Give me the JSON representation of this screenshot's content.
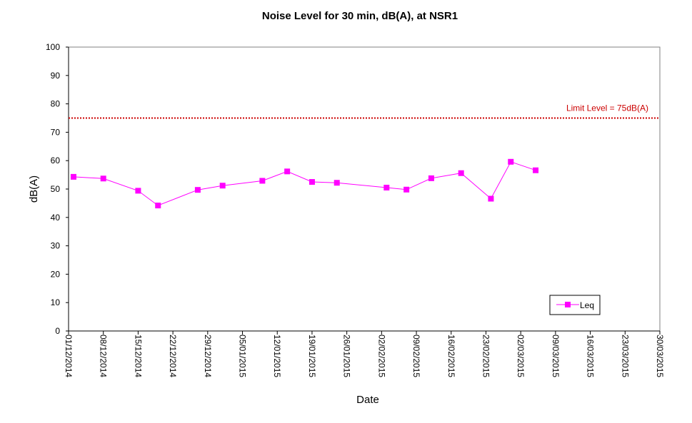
{
  "chart_data": {
    "type": "line",
    "title": "Noise Level for 30 min, dB(A), at NSR1",
    "xlabel": "Date",
    "ylabel": "dB(A)",
    "ylim": [
      0,
      100
    ],
    "yticks": [
      "0",
      "10",
      "20",
      "30",
      "40",
      "50",
      "60",
      "70",
      "80",
      "90",
      "100"
    ],
    "x_axis_type": "date",
    "xlim": [
      "2014-12-01",
      "2015-03-30"
    ],
    "xticks": [
      "01/12/2014",
      "08/12/2014",
      "15/12/2014",
      "22/12/2014",
      "29/12/2014",
      "05/01/2015",
      "12/01/2015",
      "19/01/2015",
      "26/01/2015",
      "02/02/2015",
      "09/02/2015",
      "16/02/2015",
      "23/02/2015",
      "02/03/2015",
      "09/03/2015",
      "16/03/2015",
      "23/03/2015",
      "30/03/2015"
    ],
    "grid": false,
    "legend_position": "bottom-right",
    "series": [
      {
        "name": "Leq",
        "color": "#ff00ff",
        "marker": "square",
        "x": [
          "2014-12-02",
          "2014-12-08",
          "2014-12-15",
          "2014-12-19",
          "2014-12-27",
          "2015-01-01",
          "2015-01-09",
          "2015-01-14",
          "2015-01-19",
          "2015-01-24",
          "2015-02-03",
          "2015-02-07",
          "2015-02-12",
          "2015-02-18",
          "2015-02-24",
          "2015-02-28",
          "2015-03-05",
          "2015-03-11"
        ],
        "y": [
          54.3,
          53.7,
          49.4,
          44.2,
          49.7,
          51.2,
          52.9,
          56.2,
          52.5,
          52.2,
          50.5,
          49.8,
          53.8,
          55.6,
          46.6,
          59.6,
          56.6,
          null
        ]
      }
    ],
    "reference_lines": [
      {
        "label": "Limit Level  = 75dB(A)",
        "y": 75,
        "color": "#cc0000",
        "style": "dotted"
      }
    ]
  }
}
